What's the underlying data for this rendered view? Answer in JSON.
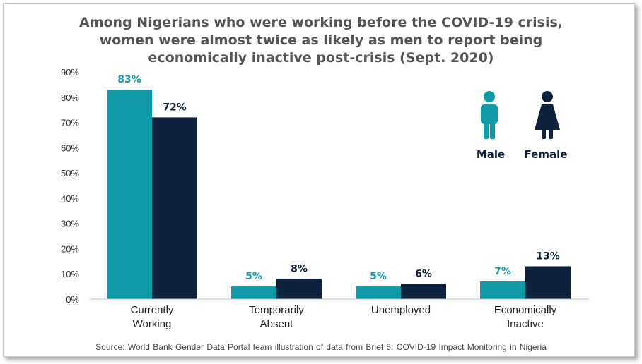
{
  "chart_data": {
    "type": "bar",
    "title_lines": [
      "Among Nigerians who were working before the COVID-19 crisis,",
      "women were almost twice as likely as men to report being",
      "economically  inactive post-crisis (Sept. 2020)"
    ],
    "categories": [
      [
        "Currently",
        "Working"
      ],
      [
        "Temporarily",
        "Absent"
      ],
      [
        "Unemployed"
      ],
      [
        "Economically",
        "Inactive"
      ]
    ],
    "series": [
      {
        "name": "Male",
        "color": "#0f9aa8",
        "values": [
          83,
          5,
          5,
          7
        ],
        "labels": [
          "83%",
          "5%",
          "5%",
          "7%"
        ]
      },
      {
        "name": "Female",
        "color": "#0e2240",
        "values": [
          72,
          8,
          6,
          13
        ],
        "labels": [
          "72%",
          "8%",
          "6%",
          "13%"
        ]
      }
    ],
    "ylim": [
      0,
      90
    ],
    "yticks": [
      0,
      10,
      20,
      30,
      40,
      50,
      60,
      70,
      80,
      90
    ],
    "ytick_labels": [
      "0%",
      "10%",
      "20%",
      "30%",
      "40%",
      "50%",
      "60%",
      "70%",
      "80%",
      "90%"
    ],
    "grid": false,
    "legend_position": "top-right",
    "legend_icons": [
      "male-person-icon",
      "female-person-icon"
    ]
  },
  "source": "Source:  World  Bank  Gender  Data  Portal team illustration  of data from  Brief  5:  COVID-19  Impact Monitoring in Nigeria"
}
